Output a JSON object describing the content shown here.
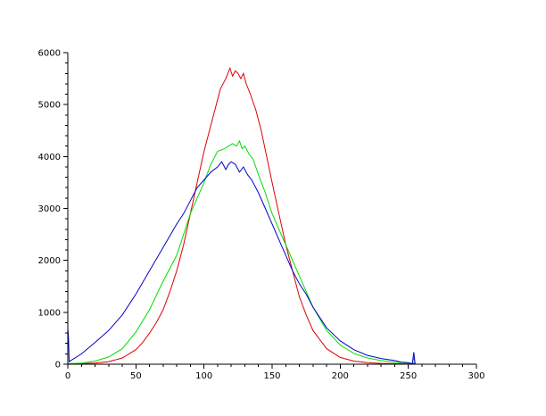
{
  "chart_data": {
    "type": "line",
    "title": "",
    "xlabel": "",
    "ylabel": "",
    "xlim": [
      0,
      300
    ],
    "ylim": [
      0,
      6000
    ],
    "grid": false,
    "legend": "none",
    "x_ticks": [
      0,
      50,
      100,
      150,
      200,
      250,
      300
    ],
    "y_ticks": [
      0,
      1000,
      2000,
      3000,
      4000,
      5000,
      6000
    ],
    "x_tick_labels": [
      "0",
      "50",
      "100",
      "150",
      "200",
      "250",
      "300"
    ],
    "y_tick_labels": [
      "0",
      "1000",
      "2000",
      "3000",
      "4000",
      "5000",
      "6000"
    ],
    "series": [
      {
        "color": "#dd0000",
        "x": [
          0,
          10,
          20,
          30,
          40,
          50,
          55,
          60,
          65,
          70,
          75,
          80,
          85,
          90,
          95,
          100,
          105,
          108,
          112,
          116,
          119,
          121,
          123,
          125,
          127,
          129,
          131,
          134,
          138,
          142,
          146,
          150,
          155,
          160,
          165,
          170,
          175,
          180,
          190,
          200,
          210,
          220,
          230,
          240,
          250,
          254,
          255
        ],
        "y": [
          10,
          10,
          20,
          50,
          120,
          280,
          420,
          600,
          800,
          1050,
          1400,
          1800,
          2300,
          2900,
          3500,
          4100,
          4600,
          4900,
          5300,
          5500,
          5700,
          5550,
          5650,
          5600,
          5500,
          5600,
          5400,
          5200,
          4900,
          4500,
          4000,
          3500,
          2900,
          2300,
          1800,
          1300,
          950,
          650,
          300,
          130,
          60,
          30,
          15,
          10,
          5,
          20,
          5
        ]
      },
      {
        "color": "#00dd00",
        "x": [
          0,
          10,
          20,
          30,
          40,
          50,
          60,
          70,
          80,
          85,
          90,
          95,
          100,
          105,
          110,
          115,
          118,
          121,
          124,
          126,
          128,
          130,
          133,
          136,
          140,
          145,
          150,
          155,
          160,
          165,
          170,
          175,
          180,
          190,
          200,
          210,
          220,
          230,
          240,
          250,
          253,
          254,
          255
        ],
        "y": [
          10,
          20,
          60,
          140,
          300,
          620,
          1050,
          1600,
          2100,
          2500,
          2900,
          3200,
          3500,
          3850,
          4100,
          4150,
          4200,
          4250,
          4200,
          4300,
          4150,
          4200,
          4050,
          3950,
          3650,
          3300,
          2900,
          2600,
          2300,
          2000,
          1700,
          1400,
          1100,
          650,
          370,
          210,
          120,
          70,
          40,
          20,
          10,
          130,
          5
        ]
      },
      {
        "color": "#0000cc",
        "x": [
          0,
          0.5,
          1,
          10,
          20,
          30,
          40,
          50,
          60,
          70,
          80,
          85,
          90,
          95,
          100,
          105,
          110,
          113,
          116,
          118,
          120,
          123,
          126,
          129,
          132,
          135,
          140,
          145,
          150,
          155,
          160,
          165,
          170,
          175,
          180,
          190,
          200,
          210,
          220,
          230,
          240,
          245,
          250,
          253,
          254,
          255
        ],
        "y": [
          700,
          500,
          50,
          200,
          420,
          650,
          950,
          1350,
          1800,
          2250,
          2700,
          2900,
          3150,
          3400,
          3550,
          3700,
          3800,
          3900,
          3750,
          3850,
          3900,
          3850,
          3700,
          3800,
          3650,
          3550,
          3300,
          3000,
          2700,
          2400,
          2100,
          1800,
          1550,
          1350,
          1100,
          700,
          450,
          280,
          170,
          110,
          70,
          40,
          30,
          10,
          230,
          5
        ]
      }
    ]
  }
}
